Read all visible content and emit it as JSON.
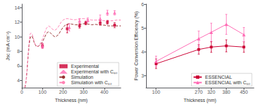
{
  "chart_data": [
    {
      "type": "line",
      "xlabel": "Thickness (nm)",
      "ylabel": "Jsc (mA cm⁻²)",
      "xlim": [
        0,
        480
      ],
      "ylim": [
        3,
        14.5
      ],
      "xticks": [
        0,
        100,
        200,
        300,
        400
      ],
      "yticks": [
        4,
        6,
        8,
        10,
        12,
        14
      ],
      "grid": false,
      "legend": "lower right",
      "series": [
        {
          "name": "Experimental",
          "type": "scatter",
          "marker": "square",
          "color": "#cc0033",
          "x": [
            100,
            220,
            280,
            310,
            380,
            415,
            450
          ],
          "values": [
            8.75,
            11.1,
            11.5,
            11.9,
            11.9,
            12.0,
            11.6
          ],
          "yerr": [
            0.3,
            0.55,
            0.3,
            0.25,
            0.3,
            0.25,
            0.35
          ]
        },
        {
          "name": "Experimental with C₆₀",
          "type": "scatter",
          "marker": "triangle",
          "color": "#ff69b4",
          "x": [
            100,
            230,
            280,
            320,
            380,
            415,
            450
          ],
          "values": [
            8.75,
            11.3,
            12.2,
            12.3,
            12.5,
            13.3,
            13.3
          ],
          "yerr": [
            0.35,
            0.5,
            0.3,
            0.3,
            0.5,
            0.35,
            0.3
          ]
        },
        {
          "name": "Simulation",
          "type": "line",
          "marker": "none",
          "line_style": "dashed",
          "color": "#993333",
          "x": [
            15,
            20,
            25,
            30,
            35,
            40,
            45,
            50,
            55,
            60,
            65,
            70,
            75,
            80,
            85,
            90,
            95,
            100,
            110,
            120,
            130,
            140,
            150,
            160,
            170,
            180,
            190,
            200,
            210,
            220,
            230,
            240,
            250,
            260,
            270,
            280,
            290,
            300,
            310,
            320,
            330,
            340,
            350,
            360,
            370,
            380,
            390,
            400,
            410,
            420,
            430,
            440,
            450,
            460,
            470,
            480
          ],
          "values": [
            3.0,
            3.8,
            5.2,
            7.2,
            8.8,
            9.8,
            10.1,
            10.05,
            9.7,
            9.2,
            8.9,
            8.7,
            8.65,
            8.7,
            8.8,
            8.9,
            9.1,
            9.3,
            9.9,
            10.5,
            10.7,
            10.5,
            10.2,
            10.0,
            10.1,
            10.4,
            10.9,
            11.3,
            11.6,
            11.75,
            11.8,
            11.75,
            11.7,
            11.65,
            11.65,
            11.7,
            11.75,
            11.8,
            11.8,
            11.75,
            11.7,
            11.65,
            11.7,
            11.7,
            11.65,
            11.65,
            11.6,
            11.6,
            11.55,
            11.5,
            11.5,
            11.5,
            11.5,
            11.5,
            11.5,
            11.5
          ]
        },
        {
          "name": "Simulation with C₆₀",
          "type": "line",
          "marker": "none",
          "line_style": "dashed",
          "color": "#ff82b4",
          "x": [
            15,
            20,
            25,
            30,
            35,
            40,
            45,
            50,
            55,
            60,
            65,
            70,
            75,
            80,
            85,
            90,
            95,
            100,
            110,
            120,
            130,
            140,
            150,
            160,
            170,
            180,
            190,
            200,
            210,
            220,
            230,
            240,
            250,
            260,
            270,
            280,
            290,
            300,
            310,
            320,
            330,
            340,
            350,
            360,
            370,
            380,
            390,
            400,
            410,
            420,
            430,
            440,
            450,
            460,
            470,
            480
          ],
          "values": [
            3.0,
            3.9,
            5.5,
            7.6,
            9.3,
            10.4,
            10.5,
            10.35,
            9.9,
            9.3,
            8.95,
            8.75,
            8.7,
            8.75,
            8.9,
            9.1,
            9.4,
            9.7,
            10.5,
            11.2,
            11.5,
            11.3,
            11.0,
            10.9,
            11.1,
            11.5,
            12.0,
            12.3,
            12.45,
            12.5,
            12.45,
            12.4,
            12.35,
            12.35,
            12.4,
            12.45,
            12.5,
            12.5,
            12.45,
            12.4,
            12.35,
            12.3,
            12.3,
            12.3,
            12.3,
            12.3,
            12.25,
            12.2,
            12.2,
            12.2,
            12.2,
            12.2,
            12.25,
            12.3,
            12.3,
            12.3
          ]
        }
      ]
    },
    {
      "type": "line",
      "xlabel": "Thickness (nm)",
      "ylabel": "Power Conversion Efficiency (%)",
      "xlim": [
        60,
        490
      ],
      "ylim": [
        2.5,
        6.0
      ],
      "xticks": [
        100,
        270,
        320,
        380,
        450
      ],
      "yticks": [
        3,
        4,
        5,
        6
      ],
      "grid": false,
      "legend": "lower right",
      "series": [
        {
          "name": "ESSENCIAL",
          "type": "line",
          "marker": "square",
          "line_style": "solid",
          "color": "#cc0033",
          "x": [
            100,
            270,
            320,
            380,
            450
          ],
          "values": [
            3.5,
            4.1,
            4.2,
            4.25,
            4.2
          ],
          "yerr": [
            0.2,
            0.2,
            0.22,
            0.25,
            0.22
          ]
        },
        {
          "name": "ESSENCIAL with C₆₀",
          "type": "line",
          "marker": "triangle",
          "line_style": "solid",
          "color": "#ff69b4",
          "x": [
            100,
            270,
            320,
            380,
            450
          ],
          "values": [
            3.6,
            4.55,
            4.82,
            5.15,
            4.72
          ],
          "yerr": [
            0.22,
            0.32,
            0.38,
            0.42,
            0.3
          ]
        }
      ]
    }
  ]
}
